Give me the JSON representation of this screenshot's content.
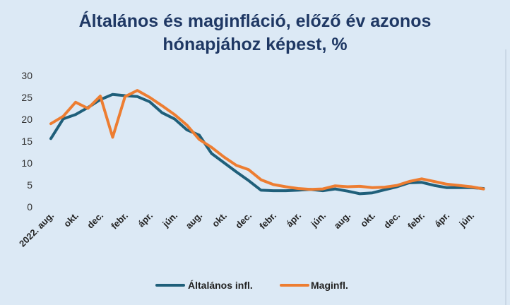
{
  "chart_data": {
    "type": "line",
    "title_line1": "Általános és maginfláció, előző év azonos",
    "title_line2": "hónapjához képest, %",
    "ylim": [
      0,
      30
    ],
    "yticks": [
      0,
      5,
      10,
      15,
      20,
      25,
      30
    ],
    "x_tick_labels": [
      "2022. aug.",
      "okt.",
      "dec.",
      "febr.",
      "ápr.",
      "jún.",
      "aug.",
      "okt.",
      "dec.",
      "febr.",
      "ápr.",
      "jún.",
      "aug.",
      "okt.",
      "dec.",
      "febr.",
      "ápr.",
      "jún."
    ],
    "grid": false,
    "legend_position": "bottom",
    "series": [
      {
        "name": "Általános infl.",
        "color": "#1f5f7a",
        "values": [
          15.6,
          20.1,
          21.1,
          22.7,
          24.5,
          25.7,
          25.4,
          25.2,
          24.0,
          21.5,
          20.1,
          17.6,
          16.4,
          12.2,
          10.1,
          8.0,
          6.0,
          3.8,
          3.7,
          3.7,
          3.8,
          4.0,
          3.7,
          4.1,
          3.6,
          3.0,
          3.2,
          3.9,
          4.6,
          5.5,
          5.6,
          4.9,
          4.4,
          4.4,
          4.4,
          4.2
        ]
      },
      {
        "name": "Maginfl.",
        "color": "#ed7d31",
        "values": [
          19.0,
          20.7,
          23.9,
          22.5,
          25.3,
          15.9,
          25.2,
          26.6,
          25.0,
          23.1,
          21.1,
          18.7,
          15.4,
          13.6,
          11.4,
          9.5,
          8.5,
          6.2,
          5.1,
          4.6,
          4.2,
          4.0,
          4.1,
          4.8,
          4.6,
          4.7,
          4.4,
          4.5,
          4.9,
          5.8,
          6.4,
          5.8,
          5.2,
          4.9,
          4.6,
          4.1
        ]
      }
    ]
  }
}
